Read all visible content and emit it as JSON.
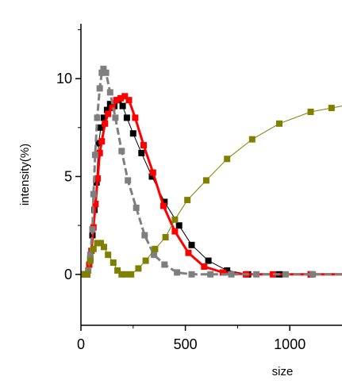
{
  "chart_data": {
    "type": "line",
    "xlabel": "size",
    "ylabel": "intensity(%)",
    "xlim": [
      0,
      1250
    ],
    "ylim": [
      -2.6,
      12.8
    ],
    "x_ticks": [
      0,
      500,
      1000
    ],
    "y_ticks": [
      0,
      5,
      10
    ],
    "legend": "none",
    "grid": false,
    "series": [
      {
        "color": "#000000",
        "line_color": "#000000",
        "line_width": 1,
        "points": [
          [
            15,
            0
          ],
          [
            30,
            0
          ],
          [
            45,
            0.8
          ],
          [
            55,
            2.0
          ],
          [
            65,
            3.3
          ],
          [
            75,
            4.7
          ],
          [
            85,
            6.7
          ],
          [
            95,
            7.5
          ],
          [
            110,
            8.0
          ],
          [
            125,
            8.4
          ],
          [
            140,
            8.7
          ],
          [
            160,
            8.6
          ],
          [
            180,
            8.9
          ],
          [
            200,
            8.6
          ],
          [
            220,
            8.0
          ],
          [
            250,
            7.2
          ],
          [
            290,
            6.2
          ],
          [
            340,
            5.0
          ],
          [
            400,
            3.7
          ],
          [
            470,
            2.5
          ],
          [
            530,
            1.5
          ],
          [
            610,
            0.7
          ],
          [
            700,
            0.2
          ],
          [
            800,
            0
          ],
          [
            950,
            0
          ],
          [
            1100,
            0
          ],
          [
            1250,
            0
          ]
        ]
      },
      {
        "color": "#ff0000",
        "line_color": "#ff0000",
        "line_width": 3,
        "points": [
          [
            15,
            0
          ],
          [
            30,
            0
          ],
          [
            40,
            0.5
          ],
          [
            50,
            1.2
          ],
          [
            60,
            2.4
          ],
          [
            70,
            3.6
          ],
          [
            80,
            4.9
          ],
          [
            90,
            6.2
          ],
          [
            100,
            6.8
          ],
          [
            115,
            7.7
          ],
          [
            130,
            8.2
          ],
          [
            150,
            8.5
          ],
          [
            170,
            8.9
          ],
          [
            190,
            9.0
          ],
          [
            210,
            9.1
          ],
          [
            230,
            8.9
          ],
          [
            260,
            8.0
          ],
          [
            300,
            6.6
          ],
          [
            345,
            5.2
          ],
          [
            395,
            3.5
          ],
          [
            450,
            2.2
          ],
          [
            515,
            1.1
          ],
          [
            590,
            0.4
          ],
          [
            680,
            0.1
          ],
          [
            790,
            0
          ],
          [
            920,
            0
          ],
          [
            1100,
            0
          ],
          [
            1250,
            0
          ]
        ]
      },
      {
        "color": "#7f7f7f",
        "line_color": "#7f7f7f",
        "line_width": 3,
        "dashed": true,
        "points": [
          [
            20,
            0
          ],
          [
            35,
            0.2
          ],
          [
            45,
            1.0
          ],
          [
            55,
            2.3
          ],
          [
            60,
            4.1
          ],
          [
            68,
            6.1
          ],
          [
            78,
            8.0
          ],
          [
            90,
            9.5
          ],
          [
            100,
            10.3
          ],
          [
            108,
            10.5
          ],
          [
            120,
            10.3
          ],
          [
            140,
            9.3
          ],
          [
            165,
            8.0
          ],
          [
            195,
            6.3
          ],
          [
            225,
            4.8
          ],
          [
            265,
            3.4
          ],
          [
            305,
            2.0
          ],
          [
            350,
            1.0
          ],
          [
            400,
            0.5
          ],
          [
            460,
            0.1
          ],
          [
            530,
            0
          ],
          [
            620,
            0
          ],
          [
            720,
            0
          ],
          [
            840,
            0
          ],
          [
            980,
            0
          ],
          [
            1110,
            0
          ],
          [
            1250,
            0
          ]
        ]
      },
      {
        "color": "#808000",
        "line_color": "#808000",
        "line_width": 1,
        "points": [
          [
            15,
            0
          ],
          [
            30,
            0
          ],
          [
            45,
            0.7
          ],
          [
            60,
            1.3
          ],
          [
            78,
            1.6
          ],
          [
            95,
            1.6
          ],
          [
            110,
            1.4
          ],
          [
            130,
            1.0
          ],
          [
            155,
            0.6
          ],
          [
            175,
            0.2
          ],
          [
            195,
            0
          ],
          [
            215,
            0
          ],
          [
            240,
            0
          ],
          [
            275,
            0.3
          ],
          [
            310,
            0.7
          ],
          [
            355,
            1.3
          ],
          [
            405,
            1.9
          ],
          [
            450,
            2.8
          ],
          [
            510,
            3.8
          ],
          [
            600,
            4.8
          ],
          [
            700,
            5.9
          ],
          [
            820,
            6.9
          ],
          [
            950,
            7.7
          ],
          [
            1100,
            8.3
          ],
          [
            1200,
            8.5
          ],
          [
            1250,
            8.6
          ]
        ]
      }
    ]
  }
}
